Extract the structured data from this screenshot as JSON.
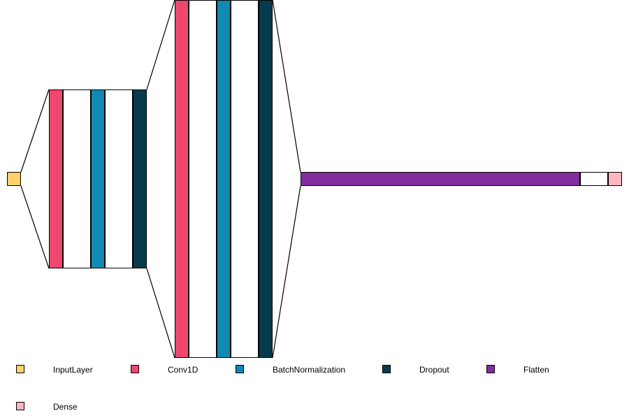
{
  "diagram": {
    "type": "layered-model-visualization",
    "layers": [
      {
        "type": "InputLayer"
      },
      {
        "type": "Conv1D"
      },
      {
        "type": "spacer"
      },
      {
        "type": "BatchNormalization"
      },
      {
        "type": "spacer"
      },
      {
        "type": "Dropout"
      },
      {
        "type": "Conv1D"
      },
      {
        "type": "spacer"
      },
      {
        "type": "BatchNormalization"
      },
      {
        "type": "spacer"
      },
      {
        "type": "Dropout"
      },
      {
        "type": "Flatten"
      },
      {
        "type": "spacer"
      },
      {
        "type": "Dense"
      }
    ]
  },
  "legend": {
    "items": [
      {
        "label": "InputLayer",
        "color": "#FFD166"
      },
      {
        "label": "Conv1D",
        "color": "#EF476F"
      },
      {
        "label": "BatchNormalization",
        "color": "#118AB2"
      },
      {
        "label": "Dropout",
        "color": "#073B4C"
      },
      {
        "label": "Flatten",
        "color": "#842DA1"
      },
      {
        "label": "Dense",
        "color": "#FFB6C1"
      }
    ]
  },
  "colors": {
    "spacer": "#FFFFFF",
    "outline": "#000000"
  }
}
